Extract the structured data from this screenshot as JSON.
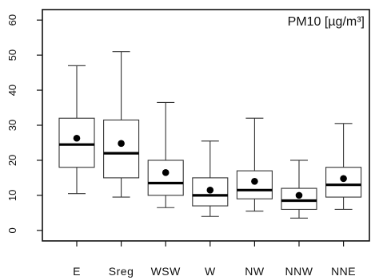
{
  "chart_data": {
    "type": "box",
    "title": "PM10 [µg/m³]",
    "xlabel": "",
    "ylabel": "",
    "ylim": [
      -3,
      63
    ],
    "yticks": [
      0,
      10,
      20,
      30,
      40,
      50,
      60
    ],
    "grid": false,
    "categories": [
      "E",
      "Sreg",
      "WSW",
      "W",
      "NW",
      "NNW",
      "NNE"
    ],
    "boxes": [
      {
        "category": "E",
        "min": 10.5,
        "q1": 18.0,
        "median": 24.5,
        "q3": 32.0,
        "max": 47.0,
        "mean": 26.3
      },
      {
        "category": "Sreg",
        "min": 9.5,
        "q1": 15.0,
        "median": 22.0,
        "q3": 31.5,
        "max": 51.0,
        "mean": 24.8
      },
      {
        "category": "WSW",
        "min": 6.5,
        "q1": 10.0,
        "median": 13.5,
        "q3": 20.0,
        "max": 36.5,
        "mean": 16.5
      },
      {
        "category": "W",
        "min": 4.0,
        "q1": 7.0,
        "median": 10.0,
        "q3": 15.0,
        "max": 25.5,
        "mean": 11.5
      },
      {
        "category": "NW",
        "min": 5.5,
        "q1": 9.0,
        "median": 11.5,
        "q3": 17.0,
        "max": 32.0,
        "mean": 14.0
      },
      {
        "category": "NNW",
        "min": 3.5,
        "q1": 6.0,
        "median": 8.5,
        "q3": 12.0,
        "max": 20.0,
        "mean": 10.0
      },
      {
        "category": "NNE",
        "min": 6.0,
        "q1": 9.5,
        "median": 13.0,
        "q3": 18.0,
        "max": 30.5,
        "mean": 14.8
      }
    ]
  }
}
